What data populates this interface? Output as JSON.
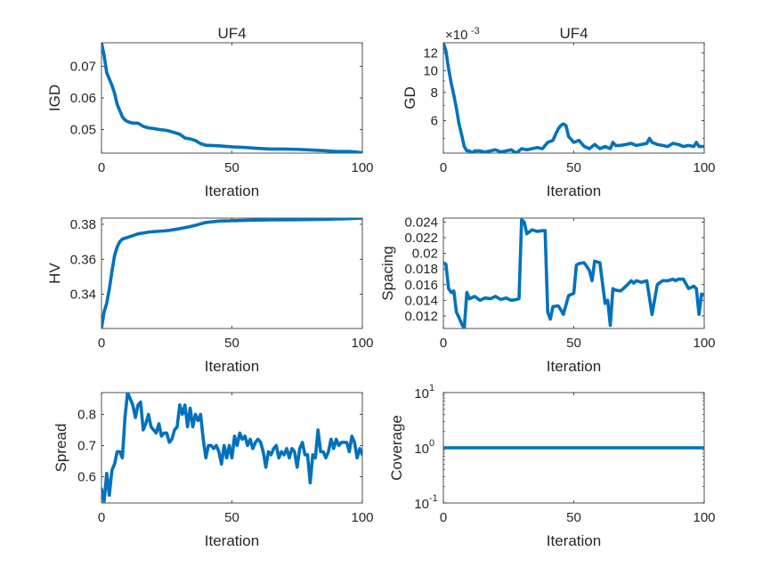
{
  "figure": {
    "background": "#ffffff",
    "line_color": "#0072BD",
    "axes_color": "#262626"
  },
  "chart_data": [
    {
      "id": "igd",
      "type": "line",
      "title": "UF4",
      "xlabel": "Iteration",
      "ylabel": "IGD",
      "xlim": [
        0,
        100
      ],
      "ylim": [
        0.0425,
        0.0775
      ],
      "xticks": [
        0,
        50,
        100
      ],
      "xtick_labels": [
        "0",
        "50",
        "100"
      ],
      "yticks": [
        0.05,
        0.06,
        0.07
      ],
      "ytick_labels": [
        "0.05",
        "0.06",
        "0.07"
      ],
      "series": [
        {
          "x": [
            0,
            1,
            2,
            3,
            4,
            5,
            6,
            7,
            8,
            9,
            10,
            12,
            14,
            15,
            16,
            18,
            20,
            22,
            24,
            25,
            26,
            28,
            30,
            32,
            34,
            36,
            38,
            40,
            45,
            50,
            55,
            60,
            65,
            70,
            75,
            80,
            85,
            90,
            95,
            98,
            100
          ],
          "y": [
            0.0775,
            0.0735,
            0.068,
            0.066,
            0.064,
            0.0615,
            0.058,
            0.056,
            0.054,
            0.053,
            0.0525,
            0.052,
            0.052,
            0.0515,
            0.051,
            0.0505,
            0.0503,
            0.05,
            0.0498,
            0.0497,
            0.0495,
            0.049,
            0.0485,
            0.0473,
            0.047,
            0.0465,
            0.0455,
            0.045,
            0.0448,
            0.0445,
            0.0443,
            0.044,
            0.0438,
            0.0438,
            0.0437,
            0.0435,
            0.0433,
            0.043,
            0.043,
            0.0428,
            0.0426
          ]
        }
      ]
    },
    {
      "id": "gd",
      "type": "line",
      "title": "UF4",
      "xlabel": "Iteration",
      "ylabel": "GD",
      "exponent_label": "×10",
      "exponent_power": "-3",
      "xlim": [
        0,
        100
      ],
      "ylim": [
        0.0043,
        0.0133
      ],
      "yscale": "log",
      "xticks": [
        0,
        50,
        100
      ],
      "xtick_labels": [
        "0",
        "50",
        "100"
      ],
      "yticks": [
        0.006,
        0.008,
        0.01,
        0.012
      ],
      "ytick_labels": [
        "6",
        "8",
        "10",
        "12"
      ],
      "series": [
        {
          "x": [
            0,
            1,
            2,
            3,
            4,
            5,
            6,
            7,
            8,
            9,
            10,
            11,
            12,
            14,
            16,
            18,
            20,
            22,
            24,
            26,
            28,
            30,
            32,
            34,
            36,
            38,
            40,
            42,
            43,
            44,
            45,
            46,
            47,
            48,
            50,
            52,
            54,
            56,
            58,
            60,
            62,
            64,
            65,
            66,
            68,
            70,
            72,
            74,
            76,
            78,
            79,
            80,
            82,
            84,
            86,
            88,
            90,
            92,
            94,
            96,
            97,
            98,
            100
          ],
          "y": [
            0.0133,
            0.0122,
            0.0102,
            0.0088,
            0.0078,
            0.0068,
            0.0058,
            0.0052,
            0.0046,
            0.0044,
            0.0044,
            0.0043,
            0.0044,
            0.0044,
            0.00435,
            0.0044,
            0.00445,
            0.00435,
            0.0044,
            0.00445,
            0.0043,
            0.0045,
            0.00445,
            0.0045,
            0.00455,
            0.0045,
            0.0048,
            0.0049,
            0.0052,
            0.0055,
            0.0057,
            0.0058,
            0.0057,
            0.0051,
            0.0048,
            0.0049,
            0.0046,
            0.0045,
            0.0047,
            0.0045,
            0.0046,
            0.0045,
            0.0048,
            0.00465,
            0.00465,
            0.0047,
            0.00475,
            0.00465,
            0.0047,
            0.00475,
            0.005,
            0.0048,
            0.0047,
            0.00465,
            0.0046,
            0.00475,
            0.0047,
            0.0046,
            0.00465,
            0.0046,
            0.0048,
            0.0046,
            0.0046
          ]
        }
      ]
    },
    {
      "id": "hv",
      "type": "line",
      "title": "",
      "xlabel": "Iteration",
      "ylabel": "HV",
      "xlim": [
        0,
        100
      ],
      "ylim": [
        0.3205,
        0.3835
      ],
      "xticks": [
        0,
        50,
        100
      ],
      "xtick_labels": [
        "0",
        "50",
        "100"
      ],
      "yticks": [
        0.34,
        0.36,
        0.38
      ],
      "ytick_labels": [
        "0.34",
        "0.36",
        "0.38"
      ],
      "series": [
        {
          "x": [
            0,
            1,
            2,
            3,
            4,
            5,
            6,
            7,
            8,
            9,
            10,
            12,
            14,
            16,
            18,
            20,
            22,
            24,
            26,
            28,
            30,
            35,
            40,
            45,
            50,
            55,
            60,
            65,
            70,
            75,
            80,
            85,
            90,
            95,
            100
          ],
          "y": [
            0.3205,
            0.33,
            0.335,
            0.343,
            0.353,
            0.362,
            0.367,
            0.37,
            0.3715,
            0.372,
            0.3725,
            0.3735,
            0.3745,
            0.375,
            0.3755,
            0.3758,
            0.376,
            0.3762,
            0.3765,
            0.377,
            0.3775,
            0.379,
            0.381,
            0.3818,
            0.382,
            0.3822,
            0.3824,
            0.3825,
            0.3825,
            0.3826,
            0.3827,
            0.3828,
            0.383,
            0.3832,
            0.3835
          ]
        }
      ]
    },
    {
      "id": "spacing",
      "type": "line",
      "title": "",
      "xlabel": "Iteration",
      "ylabel": "Spacing",
      "xlim": [
        0,
        100
      ],
      "ylim": [
        0.0104,
        0.0245
      ],
      "xticks": [
        0,
        50,
        100
      ],
      "xtick_labels": [
        "0",
        "50",
        "100"
      ],
      "yticks": [
        0.012,
        0.014,
        0.016,
        0.018,
        0.02,
        0.022,
        0.024
      ],
      "ytick_labels": [
        "0.012",
        "0.014",
        "0.016",
        "0.018",
        "0.02",
        "0.022",
        "0.024"
      ],
      "series": [
        {
          "x": [
            0,
            1,
            2,
            3,
            4,
            5,
            6,
            7,
            8,
            9,
            10,
            12,
            14,
            16,
            18,
            20,
            22,
            24,
            26,
            28,
            29,
            30,
            31,
            32,
            34,
            36,
            38,
            39,
            40,
            41,
            42,
            44,
            45,
            46,
            48,
            50,
            51,
            52,
            54,
            56,
            57,
            58,
            60,
            62,
            63,
            64,
            65,
            66,
            68,
            70,
            72,
            73,
            74,
            76,
            78,
            80,
            82,
            84,
            86,
            88,
            89,
            90,
            92,
            94,
            96,
            97,
            98,
            99,
            100
          ],
          "y": [
            0.0188,
            0.0186,
            0.0155,
            0.015,
            0.0152,
            0.0125,
            0.0118,
            0.011,
            0.0104,
            0.015,
            0.0142,
            0.0145,
            0.014,
            0.0143,
            0.0142,
            0.0145,
            0.0141,
            0.0143,
            0.014,
            0.0141,
            0.0142,
            0.0243,
            0.024,
            0.0225,
            0.023,
            0.0228,
            0.0229,
            0.0229,
            0.0125,
            0.0116,
            0.0132,
            0.0133,
            0.0128,
            0.0122,
            0.0146,
            0.0149,
            0.0185,
            0.0187,
            0.0188,
            0.0178,
            0.0165,
            0.019,
            0.0188,
            0.0136,
            0.014,
            0.0108,
            0.0155,
            0.0153,
            0.0152,
            0.0158,
            0.0165,
            0.0162,
            0.0165,
            0.0163,
            0.0165,
            0.0122,
            0.016,
            0.0165,
            0.0165,
            0.0167,
            0.0165,
            0.0167,
            0.0167,
            0.0155,
            0.0158,
            0.0155,
            0.0122,
            0.0148,
            0.0147
          ]
        }
      ]
    },
    {
      "id": "spread",
      "type": "line",
      "title": "",
      "xlabel": "Iteration",
      "ylabel": "Spread",
      "xlim": [
        0,
        100
      ],
      "ylim": [
        0.515,
        0.87
      ],
      "xticks": [
        0,
        50,
        100
      ],
      "xtick_labels": [
        "0",
        "50",
        "100"
      ],
      "yticks": [
        0.6,
        0.7,
        0.8
      ],
      "ytick_labels": [
        "0.6",
        "0.7",
        "0.8"
      ],
      "series": [
        {
          "x": [
            0,
            1,
            2,
            3,
            4,
            5,
            6,
            7,
            8,
            9,
            10,
            11,
            12,
            13,
            14,
            15,
            16,
            17,
            18,
            19,
            20,
            21,
            22,
            23,
            24,
            25,
            26,
            27,
            28,
            29,
            30,
            31,
            32,
            33,
            34,
            35,
            36,
            37,
            38,
            39,
            40,
            41,
            42,
            43,
            44,
            45,
            46,
            47,
            48,
            49,
            50,
            51,
            52,
            53,
            54,
            55,
            56,
            57,
            58,
            59,
            60,
            61,
            62,
            63,
            64,
            65,
            66,
            67,
            68,
            69,
            70,
            71,
            72,
            73,
            74,
            75,
            76,
            77,
            78,
            79,
            80,
            81,
            82,
            83,
            84,
            85,
            86,
            87,
            88,
            89,
            90,
            91,
            92,
            93,
            94,
            95,
            96,
            97,
            98,
            99,
            100
          ],
          "y": [
            0.56,
            0.52,
            0.61,
            0.54,
            0.62,
            0.64,
            0.68,
            0.68,
            0.66,
            0.79,
            0.87,
            0.85,
            0.83,
            0.79,
            0.83,
            0.84,
            0.75,
            0.77,
            0.8,
            0.76,
            0.75,
            0.74,
            0.77,
            0.73,
            0.74,
            0.74,
            0.71,
            0.72,
            0.75,
            0.76,
            0.83,
            0.8,
            0.83,
            0.76,
            0.82,
            0.76,
            0.8,
            0.78,
            0.8,
            0.72,
            0.66,
            0.7,
            0.7,
            0.69,
            0.7,
            0.68,
            0.64,
            0.7,
            0.66,
            0.7,
            0.66,
            0.73,
            0.7,
            0.74,
            0.72,
            0.73,
            0.7,
            0.72,
            0.69,
            0.71,
            0.72,
            0.71,
            0.68,
            0.63,
            0.68,
            0.67,
            0.69,
            0.7,
            0.66,
            0.68,
            0.67,
            0.69,
            0.66,
            0.69,
            0.68,
            0.63,
            0.69,
            0.71,
            0.67,
            0.67,
            0.58,
            0.67,
            0.66,
            0.75,
            0.68,
            0.68,
            0.66,
            0.68,
            0.72,
            0.69,
            0.72,
            0.7,
            0.71,
            0.71,
            0.71,
            0.68,
            0.73,
            0.71,
            0.66,
            0.69,
            0.67
          ]
        }
      ]
    },
    {
      "id": "coverage",
      "type": "line",
      "title": "",
      "xlabel": "Iteration",
      "ylabel": "Coverage",
      "xlim": [
        0,
        100
      ],
      "ylim": [
        0.1,
        10
      ],
      "yscale": "log",
      "xticks": [
        0,
        50,
        100
      ],
      "xtick_labels": [
        "0",
        "50",
        "100"
      ],
      "yticks": [
        0.1,
        1,
        10
      ],
      "ytick_bases": [
        "10",
        "10",
        "10"
      ],
      "ytick_powers": [
        "-1",
        "0",
        "1"
      ],
      "series": [
        {
          "x": [
            0,
            100
          ],
          "y": [
            1,
            1
          ]
        }
      ]
    }
  ]
}
